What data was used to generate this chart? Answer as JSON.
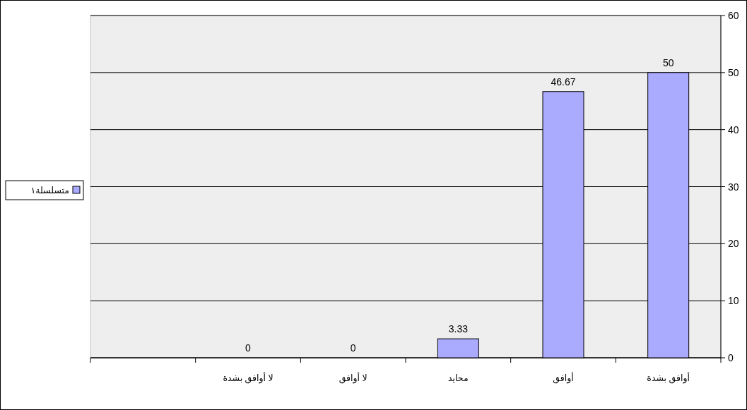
{
  "chart_data": {
    "type": "bar",
    "categories": [
      null,
      "لا أوافق بشدة",
      "لا أوافق",
      "محايد",
      "أوافق",
      "أوافق بشدة"
    ],
    "series": [
      {
        "name": "متسلسلة١",
        "color": "#aaaaff",
        "values": [
          null,
          0,
          0,
          3.33,
          46.67,
          50
        ]
      }
    ],
    "ylim": [
      0,
      60
    ],
    "yticks": [
      0,
      10,
      20,
      30,
      40,
      50,
      60
    ],
    "grid": "y",
    "legend": "left",
    "data_labels": true
  }
}
